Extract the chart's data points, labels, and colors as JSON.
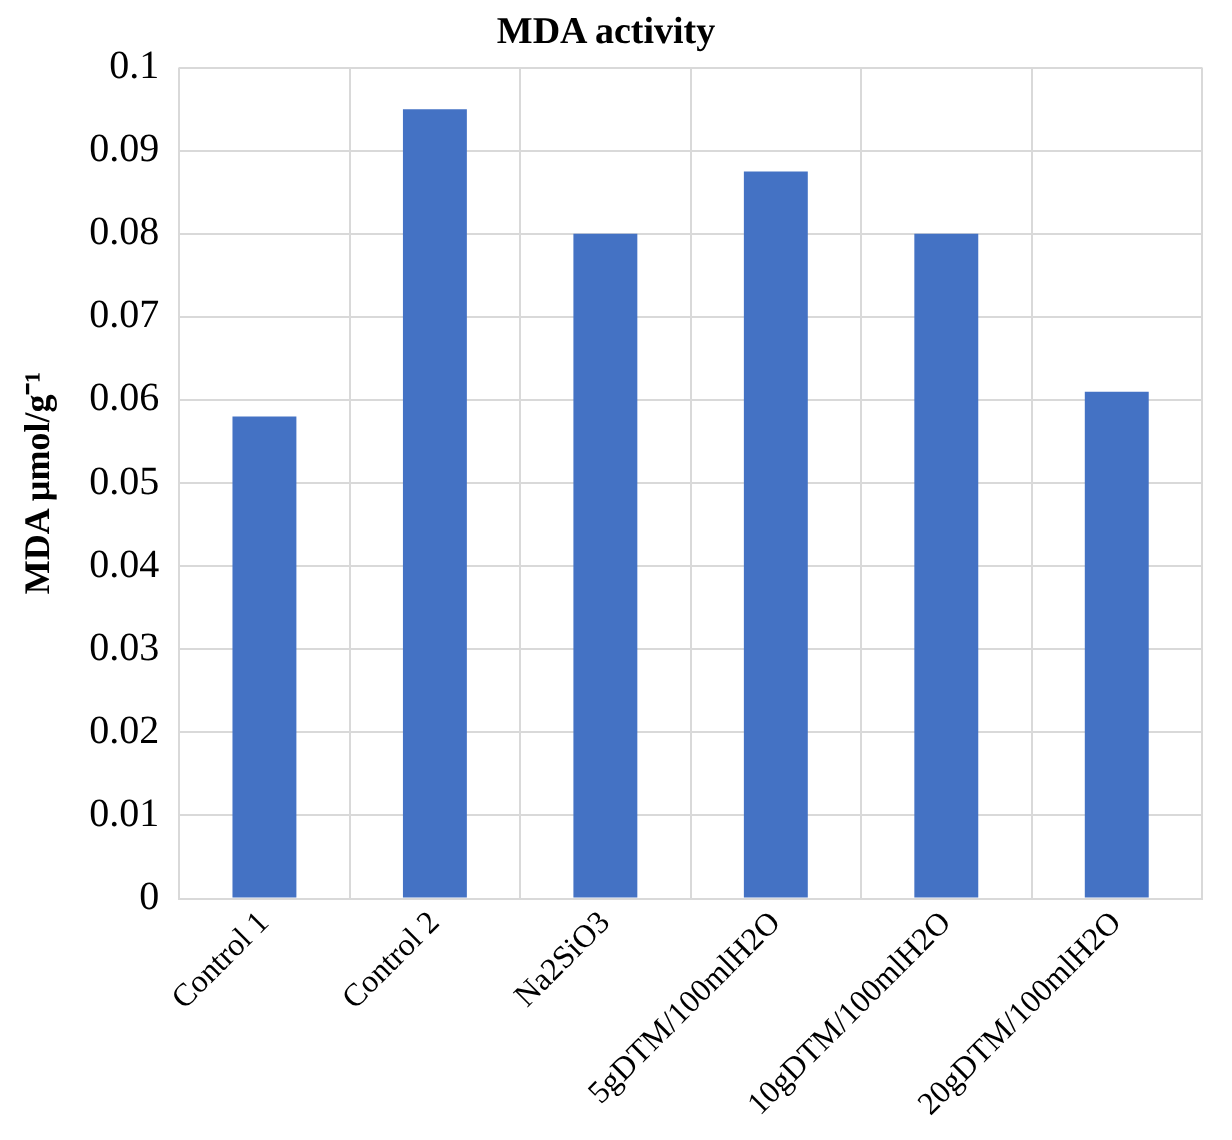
{
  "chart_data": {
    "type": "bar",
    "title": "MDA activity",
    "ylabel": "MDA µmol/g⁻¹",
    "categories": [
      "Control 1",
      "Control 2",
      "Na2SiO3",
      "5gDTM/100mlH2O",
      "10gDTM/100mlH2O",
      "20gDTM/100mlH2O"
    ],
    "values": [
      0.058,
      0.095,
      0.08,
      0.0875,
      0.08,
      0.061
    ],
    "color": "#4472c4",
    "ylim": [
      0,
      0.1
    ],
    "yticks": [
      0,
      0.01,
      0.02,
      0.03,
      0.04,
      0.05,
      0.06,
      0.07,
      0.08,
      0.09,
      0.1
    ],
    "grid": true
  }
}
